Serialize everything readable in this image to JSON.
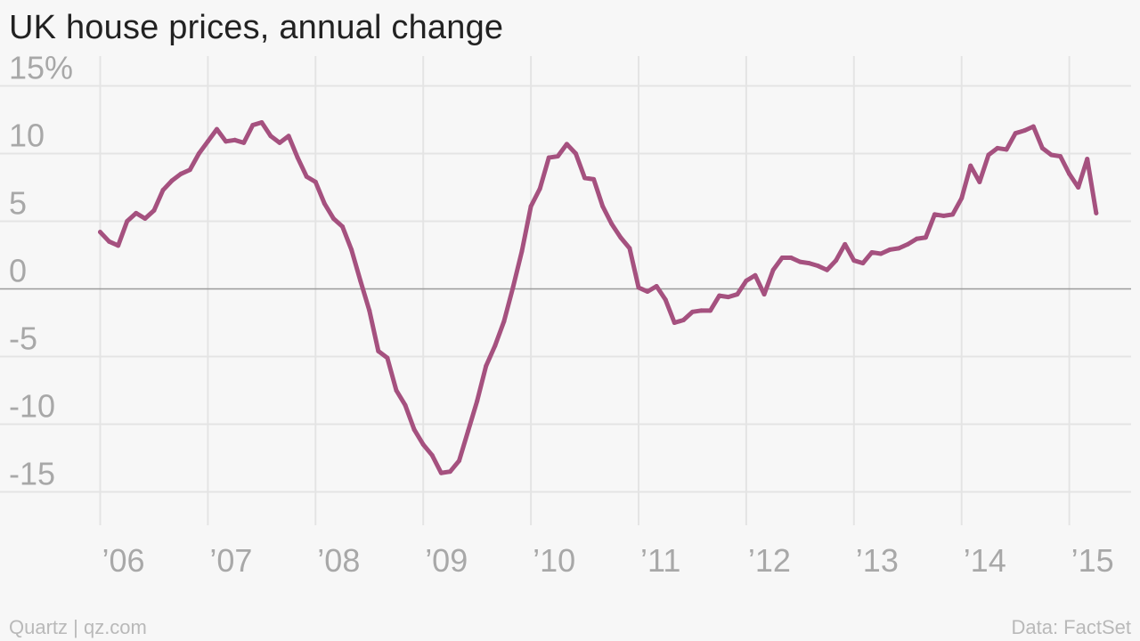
{
  "title": "UK house prices, annual change",
  "footer": {
    "credit": "Quartz | qz.com",
    "source": "Data: FactSet"
  },
  "colors": {
    "line": "#a5517f",
    "grid": "#e4e4e4",
    "zero_line": "#9a9a9a",
    "tick_text": "#a8a8a8",
    "background": "#f7f7f7"
  },
  "chart_data": {
    "type": "line",
    "title": "UK house prices, annual change",
    "xlabel": "",
    "ylabel": "",
    "grid": true,
    "legend": "none",
    "ylim": [
      -17.5,
      16.5
    ],
    "y_ticks": [
      15,
      10,
      5,
      0,
      -5,
      -10,
      -15
    ],
    "y_tick_labels": [
      "15%",
      "10",
      "5",
      "0",
      "-5",
      "-10",
      "-15"
    ],
    "x_ticks": [
      2006,
      2007,
      2008,
      2009,
      2010,
      2011,
      2012,
      2013,
      2014,
      2015
    ],
    "x_tick_labels": [
      "’06",
      "’07",
      "’08",
      "’09",
      "’10",
      "’11",
      "’12",
      "’13",
      "’14",
      "’15"
    ],
    "xlim": [
      2005.0,
      2015.55
    ],
    "x_start": "2006-01",
    "x_step_months": 1,
    "series": [
      {
        "values": [
          4.2,
          3.5,
          3.2,
          5.0,
          5.6,
          5.2,
          5.8,
          7.3,
          8.0,
          8.5,
          8.8,
          10.0,
          10.9,
          11.8,
          10.9,
          11.0,
          10.8,
          12.1,
          12.3,
          11.3,
          10.8,
          11.3,
          9.7,
          8.3,
          7.9,
          6.3,
          5.2,
          4.6,
          2.9,
          0.6,
          -1.6,
          -4.6,
          -5.1,
          -7.5,
          -8.6,
          -10.4,
          -11.5,
          -12.3,
          -13.6,
          -13.5,
          -12.7,
          -10.5,
          -8.3,
          -5.7,
          -4.2,
          -2.4,
          0.1,
          2.8,
          6.1,
          7.4,
          9.7,
          9.8,
          10.7,
          10.0,
          8.2,
          8.1,
          6.1,
          4.8,
          3.8,
          3.0,
          0.1,
          -0.2,
          0.2,
          -0.8,
          -2.5,
          -2.3,
          -1.7,
          -1.6,
          -1.6,
          -0.5,
          -0.6,
          -0.4,
          0.6,
          1.0,
          -0.4,
          1.4,
          2.3,
          2.3,
          2.0,
          1.9,
          1.7,
          1.4,
          2.1,
          3.3,
          2.1,
          1.9,
          2.7,
          2.6,
          2.9,
          3.0,
          3.3,
          3.7,
          3.8,
          5.5,
          5.4,
          5.5,
          6.7,
          9.1,
          7.9,
          9.9,
          10.4,
          10.3,
          11.5,
          11.7,
          12.0,
          10.4,
          9.9,
          9.8,
          8.5,
          7.5,
          9.6,
          5.6
        ]
      }
    ]
  }
}
